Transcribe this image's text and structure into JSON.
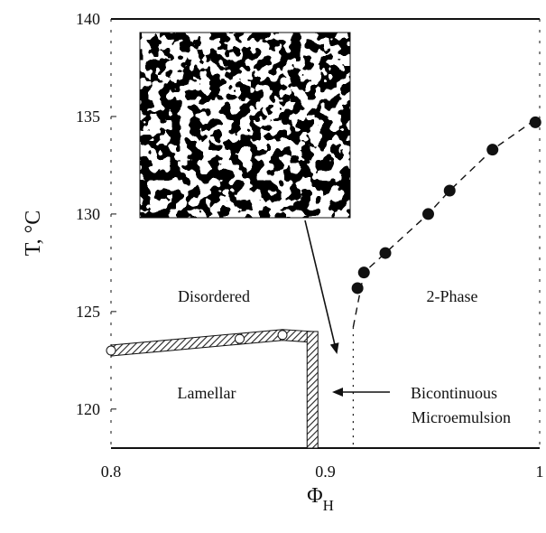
{
  "chart_data": {
    "type": "scatter",
    "xlabel": "Φ",
    "xlabel_sub": "H",
    "ylabel": "T, °C",
    "xlim": [
      0.8,
      1.0
    ],
    "ylim": [
      118,
      140
    ],
    "x_ticks": [
      "0.8",
      "0.9",
      "1"
    ],
    "x_tick_values": [
      0.8,
      0.9,
      1.0
    ],
    "y_ticks": [
      "120",
      "125",
      "130",
      "135",
      "140"
    ],
    "y_tick_values": [
      120,
      125,
      130,
      135,
      140
    ],
    "series": [
      {
        "marker": "filled-circle",
        "x": [
          0.915,
          0.918,
          0.928,
          0.948,
          0.958,
          0.978,
          0.998
        ],
        "y": [
          126.2,
          127.0,
          128.0,
          130.0,
          131.2,
          133.3,
          134.7
        ]
      }
    ],
    "dashed_boundary": {
      "x": [
        0.913,
        0.918,
        0.928,
        0.948,
        0.958,
        0.978,
        1.0
      ],
      "y": [
        124.2,
        127.0,
        128.0,
        130.0,
        131.2,
        133.3,
        135.0
      ]
    },
    "lamellar_boundary": {
      "x": [
        0.8,
        0.82,
        0.84,
        0.86,
        0.88,
        0.894
      ],
      "y": [
        123.0,
        123.2,
        123.4,
        123.6,
        123.8,
        123.7
      ]
    },
    "lamellar_vertical_x": 0.894,
    "bicontinuous_boundary_x": 0.913,
    "annotations": {
      "disordered": "Disordered",
      "two_phase": "2-Phase",
      "lamellar": "Lamellar",
      "bicontinuous_line1": "Bicontinuous",
      "bicontinuous_line2": "Microemulsion"
    },
    "grid": false
  }
}
